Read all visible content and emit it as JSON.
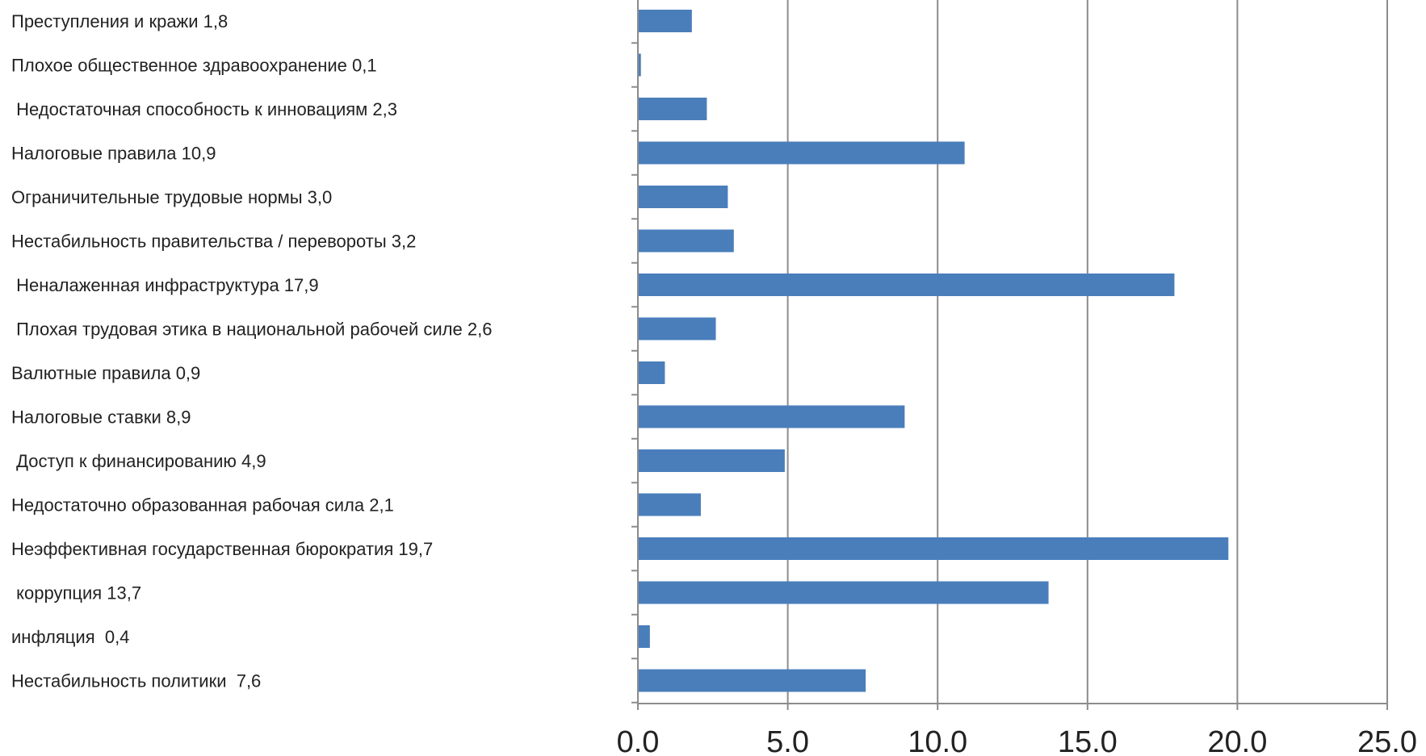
{
  "chart_data": {
    "type": "bar",
    "orientation": "horizontal",
    "title": "",
    "xlabel": "",
    "ylabel": "",
    "xlim": [
      0,
      25
    ],
    "x_ticks": [
      "0.0",
      "5.0",
      "10.0",
      "15.0",
      "20.0",
      "25.0"
    ],
    "x_tick_values": [
      0,
      5,
      10,
      15,
      20,
      25
    ],
    "grid": "vertical",
    "legend": "none",
    "bar_color": "#4a7ebb",
    "categories": [
      "Преступления и кражи 1,8",
      "Плохое общественное здравоохранение 0,1",
      " Недостаточная способность к инновациям 2,3",
      "Налоговые правила 10,9",
      "Ограничительные трудовые нормы 3,0",
      "Нестабильность правительства / перевороты 3,2",
      " Неналаженная инфраструктура 17,9",
      " Плохая трудовая этика в национальной рабочей силе 2,6",
      "Валютные правила 0,9",
      "Налоговые ставки 8,9",
      " Доступ к финансированию 4,9",
      "Недостаточно образованная рабочая сила 2,1",
      "Неэффективная государственная бюрократия 19,7",
      " коррупция 13,7",
      "инфляция  0,4",
      "Нестабильность политики  7,6"
    ],
    "values": [
      1.8,
      0.1,
      2.3,
      10.9,
      3.0,
      3.2,
      17.9,
      2.6,
      0.9,
      8.9,
      4.9,
      2.1,
      19.7,
      13.7,
      0.4,
      7.6
    ]
  }
}
